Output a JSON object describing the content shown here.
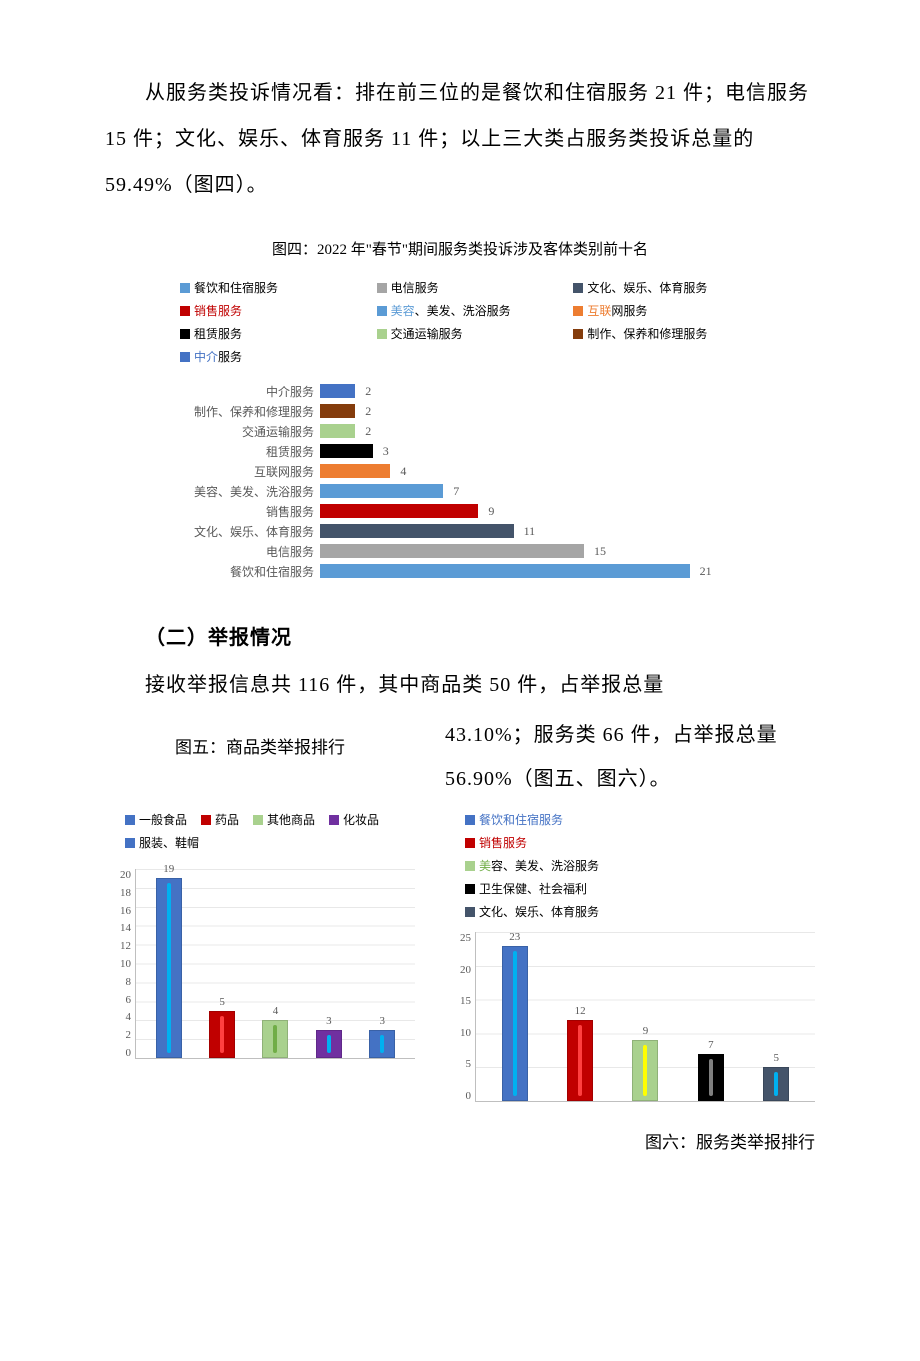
{
  "para1": "从服务类投诉情况看：排在前三位的是餐饮和住宿服务 21 件；电信服务 15 件；文化、娱乐、体育服务 11 件；以上三大类占服务类投诉总量的 59.49%（图四）。",
  "chart4": {
    "title": "图四：2022 年\"春节\"期间服务类投诉涉及客体类别前十名",
    "legend": [
      {
        "label": "餐饮和住宿服务",
        "color": "#5b9bd5"
      },
      {
        "label": "电信服务",
        "color": "#a5a5a5"
      },
      {
        "label": "文化、娱乐、体育服务",
        "color": "#44546a"
      },
      {
        "label": "销售服务",
        "color": "#c00000",
        "label_color": "#c00000"
      },
      {
        "label": "美容、美发、洗浴服务",
        "color": "#5b9bd5",
        "label_prefix_color": "#5b9bd5"
      },
      {
        "label": "互联网服务",
        "color": "#ed7d31",
        "label_prefix_color": "#ed7d31"
      },
      {
        "label": "租赁服务",
        "color": "#000000"
      },
      {
        "label": "交通运输服务",
        "color": "#a9d18e"
      },
      {
        "label": "制作、保养和修理服务",
        "color": "#843c0c"
      },
      {
        "label": "中介服务",
        "color": "#4472c4",
        "label_prefix_color": "#4472c4"
      }
    ],
    "bars": [
      {
        "label": "中介服务",
        "value": 2,
        "color": "#4472c4"
      },
      {
        "label": "制作、保养和修理服务",
        "value": 2,
        "color": "#843c0c"
      },
      {
        "label": "交通运输服务",
        "value": 2,
        "color": "#a9d18e"
      },
      {
        "label": "租赁服务",
        "value": 3,
        "color": "#000000"
      },
      {
        "label": "互联网服务",
        "value": 4,
        "color": "#ed7d31"
      },
      {
        "label": "美容、美发、洗浴服务",
        "value": 7,
        "color": "#5b9bd5"
      },
      {
        "label": "销售服务",
        "value": 9,
        "color": "#c00000"
      },
      {
        "label": "文化、娱乐、体育服务",
        "value": 11,
        "color": "#44546a"
      },
      {
        "label": "电信服务",
        "value": 15,
        "color": "#a5a5a5"
      },
      {
        "label": "餐饮和住宿服务",
        "value": 21,
        "color": "#5b9bd5"
      }
    ],
    "xmax": 25
  },
  "section_heading": "（二）举报情况",
  "para2": "接收举报信息共 116 件，其中商品类 50 件，占举报总量",
  "para3": "43.10%；服务类 66 件，占举报总量56.90%（图五、图六）。",
  "chart5": {
    "title": "图五：商品类举报排行",
    "legend": [
      {
        "label": "一般食品",
        "color": "#4472c4"
      },
      {
        "label": "药品",
        "color": "#c00000"
      },
      {
        "label": "其他商品",
        "color": "#a9d18e"
      },
      {
        "label": "化妆品",
        "color": "#7030a0"
      },
      {
        "label": "服装、鞋帽",
        "color": "#4472c4"
      }
    ],
    "bars": [
      {
        "value": 19,
        "color": "#4472c4",
        "stripe": "#00b0f0"
      },
      {
        "value": 5,
        "color": "#c00000",
        "stripe": "#ff4040"
      },
      {
        "value": 4,
        "color": "#a9d18e",
        "stripe": "#70ad47"
      },
      {
        "value": 3,
        "color": "#7030a0",
        "stripe": "#00b0f0"
      },
      {
        "value": 3,
        "color": "#4472c4",
        "stripe": "#00b0f0"
      }
    ],
    "ymax": 20,
    "yticks": [
      20,
      18,
      16,
      14,
      12,
      10,
      8,
      6,
      4,
      2,
      0
    ]
  },
  "chart6": {
    "title": "图六：服务类举报排行",
    "legend": [
      {
        "label": "餐饮和住宿服务",
        "color": "#4472c4",
        "label_color": "#4472c4"
      },
      {
        "label": "销售服务",
        "color": "#c00000",
        "label_color": "#c00000"
      },
      {
        "label": "美容、美发、洗浴服务",
        "color": "#a9d18e",
        "label_prefix_color": "#70ad47"
      },
      {
        "label": "卫生保健、社会福利",
        "color": "#000000"
      },
      {
        "label": "文化、娱乐、体育服务",
        "color": "#44546a"
      }
    ],
    "bars": [
      {
        "value": 23,
        "color": "#4472c4",
        "stripe": "#00b0f0"
      },
      {
        "value": 12,
        "color": "#c00000",
        "stripe": "#ff4040"
      },
      {
        "value": 9,
        "color": "#a9d18e",
        "stripe": "#ffff00"
      },
      {
        "value": 7,
        "color": "#000000",
        "stripe": "#808080"
      },
      {
        "value": 5,
        "color": "#44546a",
        "stripe": "#00b0f0"
      }
    ],
    "ymax": 25,
    "yticks": [
      25,
      20,
      15,
      10,
      5,
      0
    ]
  }
}
